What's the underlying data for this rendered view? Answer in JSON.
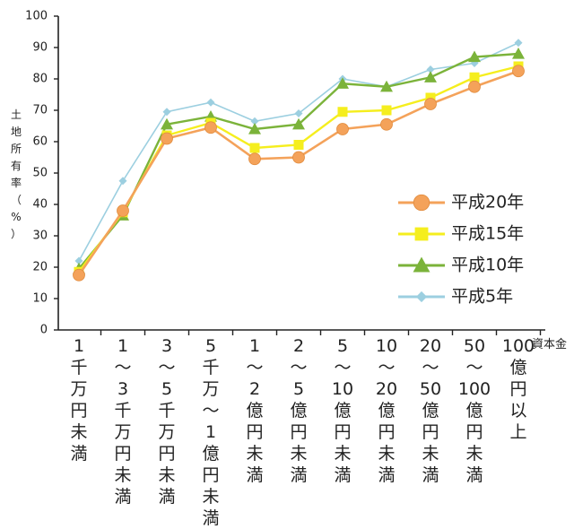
{
  "chart_data": {
    "type": "line",
    "ylabel": "土地所有率（%）",
    "xlabel": "資本金",
    "ylim": [
      0,
      100
    ],
    "yticks": [
      0,
      10,
      20,
      30,
      40,
      50,
      60,
      70,
      80,
      90,
      100
    ],
    "grid": false,
    "legend_position": "right",
    "categories": [
      "1千万円未満",
      "1〜3千万円未満",
      "3〜5千万円未満",
      "5千万〜1億円未満",
      "1〜2億円未満",
      "2〜5億円未満",
      "5〜10億円未満",
      "10〜20億円未満",
      "20〜50億円未満",
      "50〜100億円未満",
      "100億円以上"
    ],
    "series": [
      {
        "name": "平成20年",
        "color": "#f4a25a",
        "marker": "circle",
        "values": [
          17.5,
          38,
          61,
          64.5,
          54.5,
          55,
          64,
          65.5,
          72,
          77.5,
          82.5
        ]
      },
      {
        "name": "平成15年",
        "color": "#f5ee1e",
        "marker": "square",
        "values": [
          18.5,
          37.5,
          62,
          66,
          58,
          59,
          69.5,
          70,
          74,
          80.5,
          84
        ]
      },
      {
        "name": "平成10年",
        "color": "#7bb33a",
        "marker": "triangle",
        "values": [
          19.5,
          36.5,
          65.5,
          68,
          64,
          65.5,
          78.5,
          77.5,
          80.5,
          87,
          88
        ]
      },
      {
        "name": "平成5年",
        "color": "#9ccfe0",
        "marker": "diamond",
        "values": [
          22,
          47.5,
          69.5,
          72.5,
          66.5,
          69,
          80,
          77.5,
          83,
          85,
          91.5
        ]
      }
    ]
  }
}
